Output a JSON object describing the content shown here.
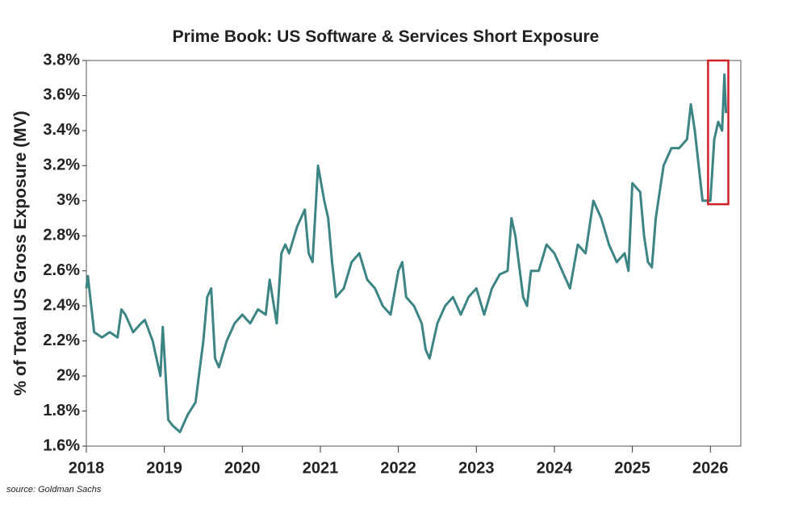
{
  "chart_data": {
    "type": "line",
    "title": "Prime Book: US Software & Services Short Exposure",
    "y_label": "% of Total US Gross Exposure (MV)",
    "source": "source: Goldman Sachs",
    "xlim": [
      2018,
      2026.39
    ],
    "xticks": [
      2018,
      2019,
      2020,
      2021,
      2022,
      2023,
      2024,
      2025,
      2026
    ],
    "ylim": [
      1.6,
      3.8
    ],
    "yticks": [
      {
        "value": 1.6,
        "label": "1.6%"
      },
      {
        "value": 1.8,
        "label": "1.8%"
      },
      {
        "value": 2,
        "label": "2%"
      },
      {
        "value": 2.2,
        "label": "2.2%"
      },
      {
        "value": 2.4,
        "label": "2.4%"
      },
      {
        "value": 2.6,
        "label": "2.6%"
      },
      {
        "value": 2.8,
        "label": "2.8%"
      },
      {
        "value": 3,
        "label": "3%"
      },
      {
        "value": 3.2,
        "label": "3.2%"
      },
      {
        "value": 3.4,
        "label": "3.4%"
      },
      {
        "value": 3.6,
        "label": "3.6%"
      },
      {
        "value": 3.8,
        "label": "3.8%"
      }
    ],
    "highlight": {
      "xlim": [
        2025.97,
        2026.23
      ],
      "ylim": [
        2.98,
        3.8
      ],
      "color": "#d0202a"
    },
    "series": [
      {
        "name": "Short Exposure",
        "color": "#3d8584",
        "x": [
          2018.0,
          2018.02,
          2018.05,
          2018.1,
          2018.2,
          2018.3,
          2018.4,
          2018.45,
          2018.5,
          2018.6,
          2018.7,
          2018.75,
          2018.85,
          2018.9,
          2018.95,
          2018.98,
          2019.05,
          2019.1,
          2019.2,
          2019.3,
          2019.4,
          2019.5,
          2019.55,
          2019.6,
          2019.65,
          2019.7,
          2019.8,
          2019.9,
          2020.0,
          2020.1,
          2020.2,
          2020.3,
          2020.35,
          2020.44,
          2020.5,
          2020.55,
          2020.6,
          2020.7,
          2020.8,
          2020.85,
          2020.9,
          2020.97,
          2021.05,
          2021.1,
          2021.15,
          2021.2,
          2021.3,
          2021.4,
          2021.5,
          2021.6,
          2021.7,
          2021.8,
          2021.9,
          2022.0,
          2022.05,
          2022.1,
          2022.2,
          2022.3,
          2022.35,
          2022.4,
          2022.5,
          2022.6,
          2022.7,
          2022.8,
          2022.9,
          2023.0,
          2023.1,
          2023.2,
          2023.3,
          2023.4,
          2023.45,
          2023.5,
          2023.6,
          2023.65,
          2023.7,
          2023.8,
          2023.9,
          2024.0,
          2024.1,
          2024.2,
          2024.3,
          2024.4,
          2024.5,
          2024.6,
          2024.7,
          2024.8,
          2024.9,
          2024.95,
          2025.0,
          2025.1,
          2025.15,
          2025.2,
          2025.25,
          2025.3,
          2025.4,
          2025.5,
          2025.6,
          2025.7,
          2025.75,
          2025.8,
          2025.85,
          2025.9,
          2026.0,
          2026.05,
          2026.1,
          2026.15,
          2026.18,
          2026.2
        ],
        "values": [
          2.5,
          2.57,
          2.45,
          2.25,
          2.22,
          2.25,
          2.22,
          2.38,
          2.35,
          2.25,
          2.3,
          2.32,
          2.2,
          2.1,
          2.0,
          2.28,
          1.75,
          1.72,
          1.68,
          1.78,
          1.85,
          2.2,
          2.45,
          2.5,
          2.1,
          2.05,
          2.2,
          2.3,
          2.35,
          2.3,
          2.38,
          2.35,
          2.55,
          2.3,
          2.7,
          2.75,
          2.7,
          2.85,
          2.95,
          2.7,
          2.65,
          3.2,
          3.0,
          2.9,
          2.65,
          2.45,
          2.5,
          2.65,
          2.7,
          2.55,
          2.5,
          2.4,
          2.35,
          2.6,
          2.65,
          2.45,
          2.4,
          2.3,
          2.15,
          2.1,
          2.3,
          2.4,
          2.45,
          2.35,
          2.45,
          2.5,
          2.35,
          2.5,
          2.58,
          2.6,
          2.9,
          2.8,
          2.45,
          2.4,
          2.6,
          2.6,
          2.75,
          2.7,
          2.6,
          2.5,
          2.75,
          2.7,
          3.0,
          2.9,
          2.75,
          2.65,
          2.7,
          2.6,
          3.1,
          3.05,
          2.8,
          2.65,
          2.62,
          2.9,
          3.2,
          3.3,
          3.3,
          3.35,
          3.55,
          3.4,
          3.2,
          3.0,
          3.0,
          3.35,
          3.45,
          3.4,
          3.72,
          3.5
        ]
      }
    ]
  }
}
